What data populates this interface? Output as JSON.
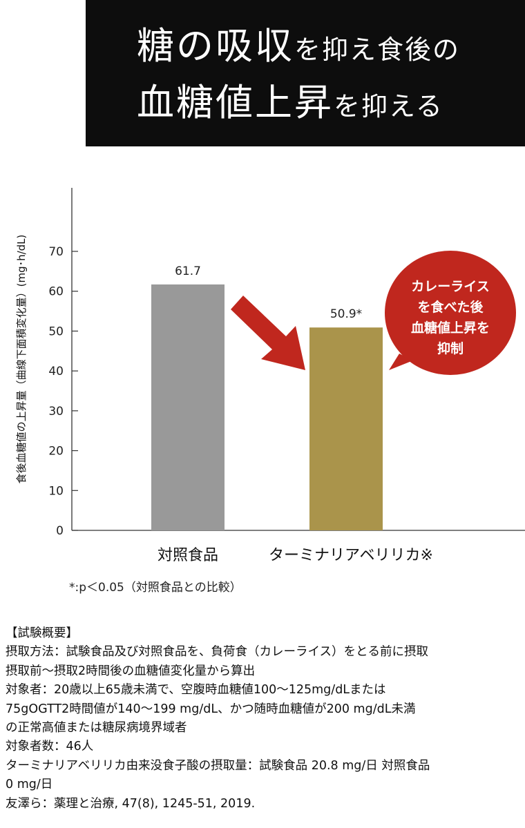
{
  "header": {
    "line1": [
      {
        "text": "糖の吸収",
        "size": "big"
      },
      {
        "text": "を抑え食後の",
        "size": "small"
      }
    ],
    "line2": [
      {
        "text": "血糖値上昇",
        "size": "big"
      },
      {
        "text": "を抑える",
        "size": "small"
      }
    ]
  },
  "chart_data": {
    "type": "bar",
    "ylabel": "食後血糖値の上昇量（曲線下面積変化量）(mg･h/dL)",
    "ylim": [
      0,
      70
    ],
    "yticks": [
      0,
      10,
      20,
      30,
      40,
      50,
      60,
      70
    ],
    "grid": false,
    "categories": [
      "対照食品",
      "ターミナリアベリリカ※"
    ],
    "values": [
      61.7,
      50.9
    ],
    "data_labels": [
      "61.7",
      "50.9*"
    ],
    "colors": [
      "#999999",
      "#aa944b"
    ],
    "annotations": {
      "arrow_color": "#c0271e",
      "callout_color": "#c0271e",
      "callout_lines": [
        "カレーライス",
        "を食べた後",
        "血糖値上昇を",
        "抑制"
      ]
    }
  },
  "note": "*:p＜0.05（対照食品との比較）",
  "summary": {
    "lines": [
      "【試験概要】",
      "摂取方法：試験食品及び対照食品を、負荷食（カレーライス）をとる前に摂取",
      "摂取前〜摂取2時間後の血糖値変化量から算出",
      "対象者：20歳以上65歳未満で、空腹時血糖値100〜125mg/dLまたは",
      "75gOGTT2時間値が140〜199 mg/dL、かつ随時血糖値が200 mg/dL未満",
      "の正常高値または糖尿病境界域者",
      "対象者数：46人",
      "ターミナリアベリリカ由来没食子酸の摂取量：試験食品 20.8 mg/日 対照食品",
      "0 mg/日",
      "友澤ら：薬理と治療, 47(8), 1245-51, 2019."
    ]
  }
}
